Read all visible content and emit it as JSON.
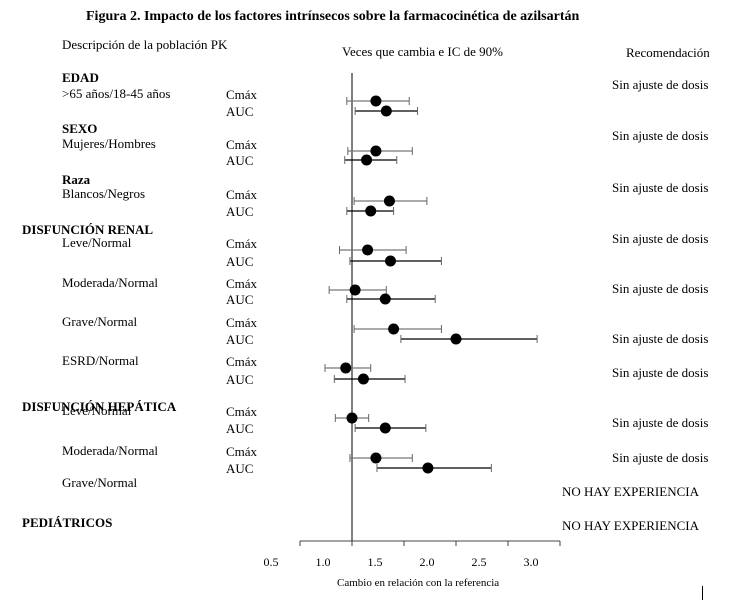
{
  "figure": {
    "title": "Figura 2. Impacto de los factores intrínsecos sobre la farmacocinética de azilsartán",
    "header_population": "Descripción de la población PK",
    "header_change": "Veces que cambia e IC de 90%",
    "header_recommendation": "Recomendación"
  },
  "chart_data": {
    "type": "forest",
    "xlabel": "Cambio en relación con la referencia",
    "xlim": [
      0.5,
      3.0
    ],
    "xticks": [
      "0.5",
      "1.0",
      "1.5",
      "2.0",
      "2.5",
      "3.0"
    ],
    "reference_line": 1.0,
    "groups": [
      {
        "heading": "EDAD",
        "rows": [
          {
            "subgroup": ">65 años/18-45 años",
            "param": "Cmáx",
            "estimate": 1.23,
            "ci": [
              0.95,
              1.55
            ]
          },
          {
            "subgroup": "",
            "param": "AUC",
            "estimate": 1.33,
            "ci": [
              1.03,
              1.63
            ]
          }
        ]
      },
      {
        "heading": "SEXO",
        "rows": [
          {
            "subgroup": "Mujeres/Hombres",
            "param": "Cmáx",
            "estimate": 1.23,
            "ci": [
              0.96,
              1.58
            ]
          },
          {
            "subgroup": "",
            "param": "AUC",
            "estimate": 1.14,
            "ci": [
              0.93,
              1.43
            ]
          }
        ]
      },
      {
        "heading": "Raza",
        "rows": [
          {
            "subgroup": "Blancos/Negros",
            "param": "Cmáx",
            "estimate": 1.36,
            "ci": [
              1.02,
              1.72
            ]
          },
          {
            "subgroup": "",
            "param": "AUC",
            "estimate": 1.18,
            "ci": [
              0.95,
              1.4
            ]
          }
        ]
      },
      {
        "heading": "DISFUNCIÓN RENAL",
        "rows": [
          {
            "subgroup": "Leve/Normal",
            "param": "Cmáx",
            "estimate": 1.15,
            "ci": [
              0.88,
              1.52
            ]
          },
          {
            "subgroup": "",
            "param": "AUC",
            "estimate": 1.37,
            "ci": [
              0.98,
              1.86
            ]
          },
          {
            "subgroup": "Moderada/Normal",
            "param": "Cmáx",
            "estimate": 1.03,
            "ci": [
              0.78,
              1.33
            ]
          },
          {
            "subgroup": "",
            "param": "AUC",
            "estimate": 1.32,
            "ci": [
              0.95,
              1.8
            ]
          },
          {
            "subgroup": "Grave/Normal",
            "param": "Cmáx",
            "estimate": 1.4,
            "ci": [
              1.02,
              1.86
            ]
          },
          {
            "subgroup": "",
            "param": "AUC",
            "estimate": 2.0,
            "ci": [
              1.47,
              2.78
            ]
          },
          {
            "subgroup": "ESRD/Normal",
            "param": "Cmáx",
            "estimate": 0.94,
            "ci": [
              0.74,
              1.18
            ]
          },
          {
            "subgroup": "",
            "param": "AUC",
            "estimate": 1.11,
            "ci": [
              0.83,
              1.51
            ]
          }
        ]
      },
      {
        "heading": "DISFUNCIÓN HEPÁTICA",
        "rows": [
          {
            "subgroup": "Leve/Normal",
            "param": "Cmáx",
            "estimate": 1.0,
            "ci": [
              0.84,
              1.16
            ]
          },
          {
            "subgroup": "",
            "param": "AUC",
            "estimate": 1.32,
            "ci": [
              1.03,
              1.71
            ]
          },
          {
            "subgroup": "Moderada/Normal",
            "param": "Cmáx",
            "estimate": 1.23,
            "ci": [
              0.98,
              1.58
            ]
          },
          {
            "subgroup": "",
            "param": "AUC",
            "estimate": 1.73,
            "ci": [
              1.24,
              2.34
            ]
          },
          {
            "subgroup": "Grave/Normal",
            "param": "",
            "estimate": null,
            "ci": null
          }
        ]
      },
      {
        "heading": "PEDIÁTRICOS",
        "rows": []
      }
    ],
    "recommendations": [
      {
        "group": "EDAD",
        "text": "Sin ajuste de dosis"
      },
      {
        "group": "SEXO",
        "text": "Sin ajuste de dosis"
      },
      {
        "group": "Raza",
        "text": "Sin ajuste de dosis"
      },
      {
        "group": "DISFUNCIÓN RENAL Leve/Normal",
        "text": "Sin ajuste de dosis"
      },
      {
        "group": "DISFUNCIÓN RENAL Moderada/Normal",
        "text": "Sin ajuste de dosis"
      },
      {
        "group": "DISFUNCIÓN RENAL Grave/Normal",
        "text": "Sin ajuste de dosis"
      },
      {
        "group": "DISFUNCIÓN RENAL ESRD/Normal",
        "text": "Sin ajuste de dosis"
      },
      {
        "group": "DISFUNCIÓN HEPÁTICA Leve/Normal",
        "text": "Sin ajuste de dosis"
      },
      {
        "group": "DISFUNCIÓN HEPÁTICA Moderada/Normal",
        "text": "Sin ajuste de dosis"
      },
      {
        "group": "DISFUNCIÓN HEPÁTICA Grave/Normal",
        "text": "NO HAY EXPERIENCIA"
      },
      {
        "group": "PEDIÁTRICOS",
        "text": "NO HAY EXPERIENCIA"
      }
    ]
  }
}
